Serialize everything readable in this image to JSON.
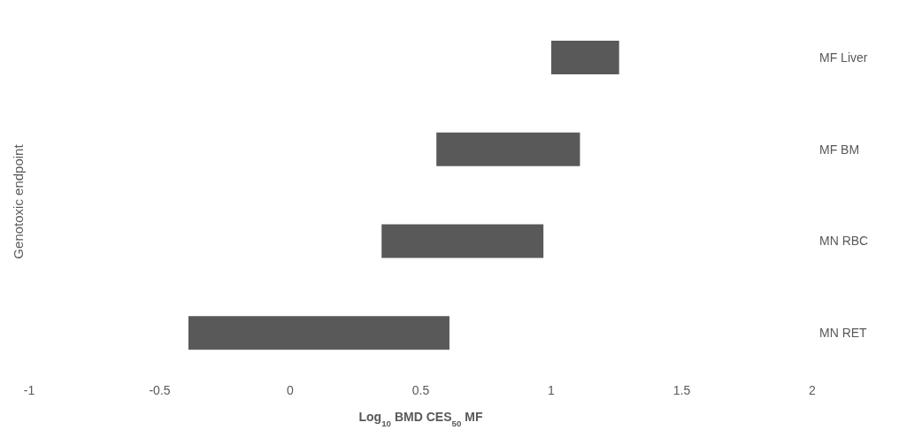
{
  "chart_data": {
    "type": "bar",
    "orientation": "horizontal",
    "xlabel": "Log$_{10}$ BMD CES$_{50}$ MF",
    "ylabel": "Genotoxic endpoint",
    "categories": [
      "MF Liver",
      "MF BM",
      "MN RBC",
      "MN RET"
    ],
    "base": [
      1.0,
      0.56,
      0.35,
      -0.39
    ],
    "values": [
      0.26,
      0.55,
      0.62,
      1.0
    ],
    "color": "#595959",
    "xlim": [
      -1,
      2
    ],
    "xticks": [
      -1,
      -0.5,
      0,
      0.5,
      1,
      1.5,
      2
    ],
    "grid": false,
    "legend": false
  }
}
